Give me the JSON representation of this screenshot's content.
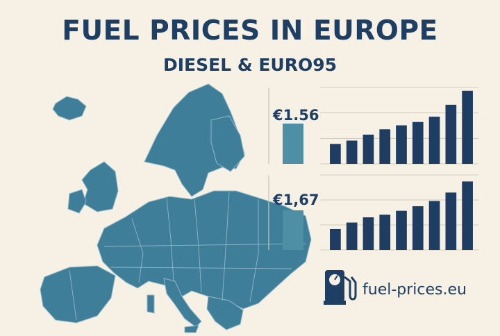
{
  "header": {
    "title": "FUEL PRICES IN EUROPE",
    "subtitle": "DIESEL & EURO95"
  },
  "price_panels": [
    {
      "price_label": "€1.56"
    },
    {
      "price_label": "€1,67"
    }
  ],
  "brand": {
    "site_name": "fuel-prices.eu",
    "icon": "fuel-pump-icon"
  },
  "colors": {
    "background": "#f6f1e4",
    "heading": "#1e3f63",
    "map_fill": "#3f7e99",
    "price_bar": "#4f8fa6",
    "chart_bar": "#1f3d62"
  },
  "chart_data": [
    {
      "type": "bar",
      "values": [
        3.0,
        3.5,
        4.4,
        5.2,
        5.8,
        6.3,
        7.1,
        8.9,
        11.0
      ],
      "ylim": [
        0,
        11.5
      ],
      "grid": true,
      "legend": "none",
      "title": ""
    },
    {
      "type": "bar",
      "values": [
        3.2,
        4.2,
        5.0,
        5.4,
        6.0,
        6.7,
        7.5,
        8.8,
        10.5
      ],
      "ylim": [
        0,
        11.5
      ],
      "grid": true,
      "legend": "none",
      "title": ""
    }
  ]
}
